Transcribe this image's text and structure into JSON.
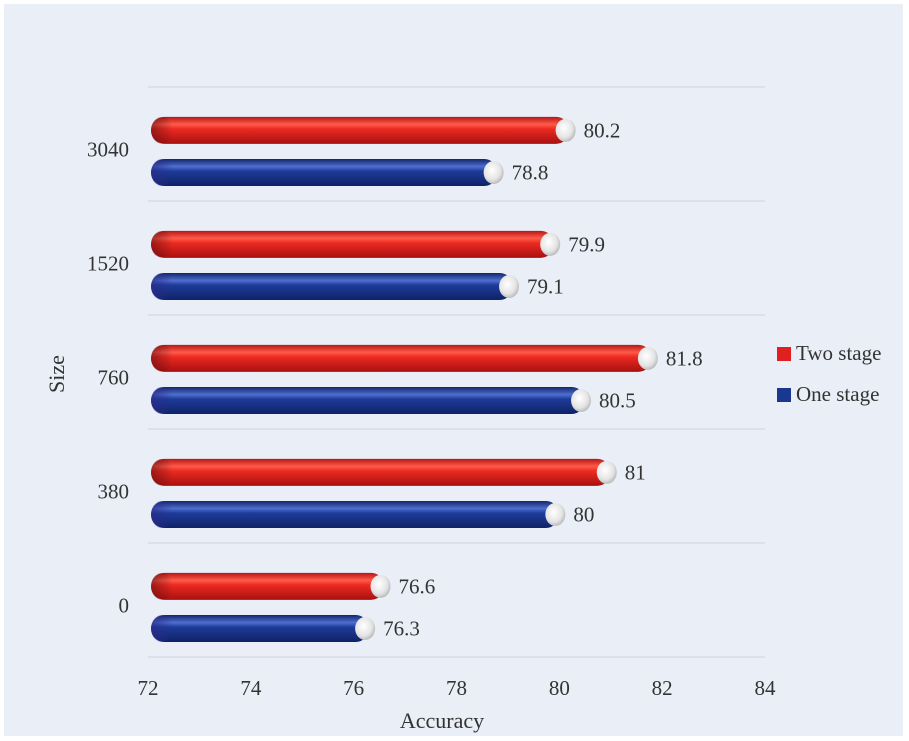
{
  "chart_data": {
    "type": "bar",
    "orientation": "horizontal",
    "categories": [
      "0",
      "380",
      "760",
      "1520",
      "3040"
    ],
    "series": [
      {
        "name": "Two stage",
        "values": [
          76.6,
          81,
          81.8,
          79.9,
          80.2
        ],
        "color": "#e0201f"
      },
      {
        "name": "One stage",
        "values": [
          76.3,
          80,
          80.5,
          79.1,
          78.8
        ],
        "color": "#1a3890"
      }
    ],
    "value_labels": {
      "two_stage": [
        "76.6",
        "81",
        "81.8",
        "79.9",
        "80.2"
      ],
      "one_stage": [
        "76.3",
        "80",
        "80.5",
        "79.1",
        "78.8"
      ]
    },
    "xlabel": "Accuracy",
    "ylabel": "Size",
    "xlim": [
      72,
      84
    ],
    "xticks": [
      "72",
      "74",
      "76",
      "78",
      "80",
      "82",
      "84"
    ],
    "grid": "horizontal separators between categories",
    "legend_position": "right",
    "legend": [
      "Two stage",
      "One stage"
    ],
    "background": "#e9eef7"
  }
}
